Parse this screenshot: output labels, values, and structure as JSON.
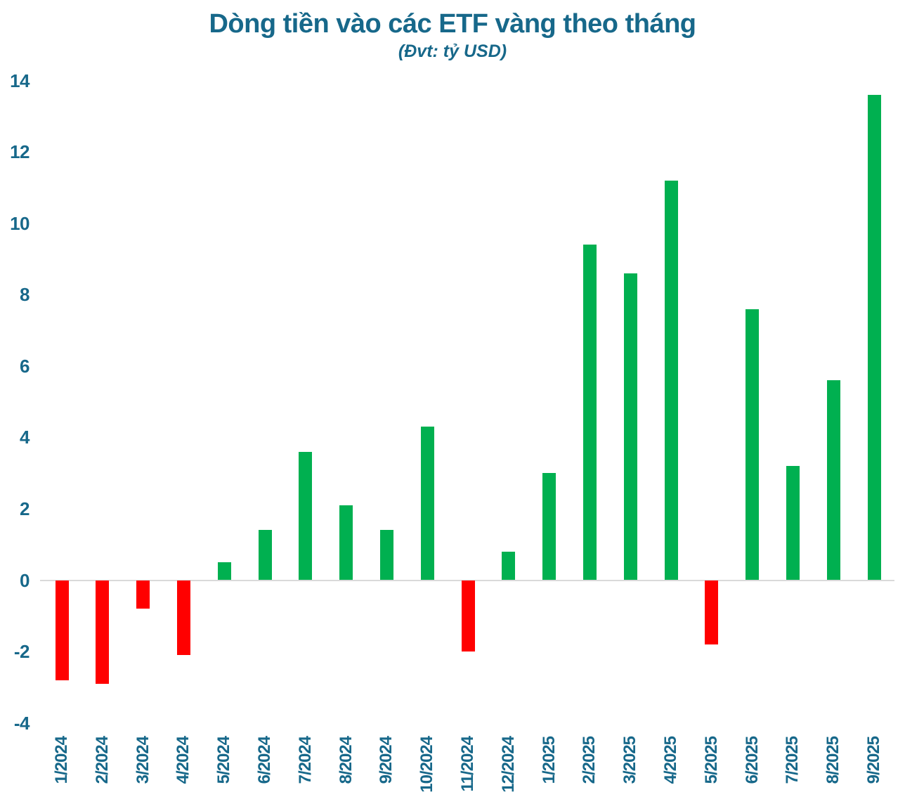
{
  "chart_data": {
    "type": "bar",
    "title": "Dòng tiền vào các ETF vàng theo tháng",
    "subtitle": "(Đvt: tỷ USD)",
    "categories": [
      "1/2024",
      "2/2024",
      "3/2024",
      "4/2024",
      "5/2024",
      "6/2024",
      "7/2024",
      "8/2024",
      "9/2024",
      "10/2024",
      "11/2024",
      "12/2024",
      "1/2025",
      "2/2025",
      "3/2025",
      "4/2025",
      "5/2025",
      "6/2025",
      "7/2025",
      "8/2025",
      "9/2025"
    ],
    "values": [
      -2.8,
      -2.9,
      -0.8,
      -2.1,
      0.5,
      1.4,
      3.6,
      2.1,
      1.4,
      4.3,
      -2.0,
      0.8,
      3.0,
      9.4,
      8.6,
      11.2,
      -1.8,
      7.6,
      3.2,
      5.6,
      13.6
    ],
    "xlabel": "",
    "ylabel": "",
    "ylim": [
      -4,
      14
    ],
    "yticks": [
      14,
      12,
      10,
      8,
      6,
      4,
      2,
      0,
      -2,
      -4
    ],
    "grid": "zero-baseline-only",
    "legend": "none",
    "colors": {
      "positive": "#00B050",
      "negative": "#FF0000",
      "axis_text": "#17688A",
      "title_text": "#17688A",
      "baseline": "#D9D9D9",
      "background": "#FFFFFF"
    }
  }
}
